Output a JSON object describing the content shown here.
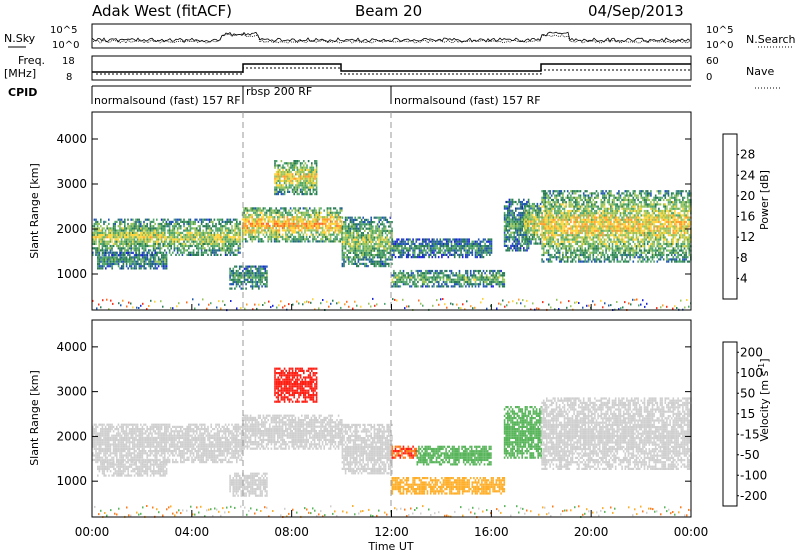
{
  "header": {
    "station": "Adak West (fitACF)",
    "beam": "Beam 20",
    "date": "04/Sep/2013"
  },
  "top_panels": {
    "nsky_label": "N.Sky",
    "nsky_ticks": [
      "10^5",
      "10^0"
    ],
    "nsearch_label": "N.Search",
    "nsearch_ticks": [
      "10^5",
      "10^0"
    ],
    "freq_label": "Freq.",
    "freq_unit": "[MHz]",
    "freq_ticks": [
      "18",
      "8"
    ],
    "nave_label": "Nave",
    "nave_ticks": [
      "60",
      "0"
    ],
    "cpid_label": "CPID",
    "cpid_segments": [
      {
        "start_h": 0,
        "end_h": 6,
        "name": "normalsound (fast) 157 RF"
      },
      {
        "start_h": 6,
        "end_h": 12,
        "name": "rbsp 200 RF"
      },
      {
        "start_h": 12,
        "end_h": 24,
        "name": "normalsound (fast) 157 RF"
      }
    ]
  },
  "chart_data": [
    {
      "type": "heatmap",
      "title": "",
      "xlabel": "Time UT",
      "ylabel": "Slant Range [km]",
      "xlim": [
        0,
        24
      ],
      "ylim": [
        200,
        4600
      ],
      "yticks": [
        1000,
        2000,
        3000,
        4000
      ],
      "colorbar": {
        "label": "Power [dB]",
        "ticks": [
          "4",
          "8",
          "12",
          "16",
          "20",
          "24",
          "28"
        ],
        "colors": [
          "#1a23d8",
          "#2156b0",
          "#2a7c55",
          "#4fa66b",
          "#97c45a",
          "#ffd43a",
          "#ff9c2a",
          "#ff6a1f",
          "#ff2a12"
        ]
      },
      "regions": [
        {
          "t0": 0.0,
          "t1": 5.9,
          "r0": 1450,
          "r1": 2250,
          "intensity": 0.55
        },
        {
          "t0": 0.2,
          "t1": 3.0,
          "r0": 1150,
          "r1": 1500,
          "intensity": 0.35
        },
        {
          "t0": 5.5,
          "t1": 7.0,
          "r0": 700,
          "r1": 1200,
          "intensity": 0.35
        },
        {
          "t0": 6.0,
          "t1": 10.0,
          "r0": 1750,
          "r1": 2500,
          "intensity": 0.75
        },
        {
          "t0": 7.3,
          "t1": 9.0,
          "r0": 2800,
          "r1": 3550,
          "intensity": 0.65
        },
        {
          "t0": 10.0,
          "t1": 12.0,
          "r0": 1200,
          "r1": 2300,
          "intensity": 0.5
        },
        {
          "t0": 12.0,
          "t1": 16.0,
          "r0": 1400,
          "r1": 1800,
          "intensity": 0.3
        },
        {
          "t0": 12.0,
          "t1": 16.5,
          "r0": 750,
          "r1": 1100,
          "intensity": 0.45
        },
        {
          "t0": 16.5,
          "t1": 17.5,
          "r0": 1550,
          "r1": 2700,
          "intensity": 0.35
        },
        {
          "t0": 17.3,
          "t1": 18.0,
          "r0": 1700,
          "r1": 2600,
          "intensity": 0.6
        },
        {
          "t0": 18.0,
          "t1": 24.0,
          "r0": 1300,
          "r1": 2900,
          "intensity": 0.65
        }
      ]
    },
    {
      "type": "heatmap",
      "title": "",
      "xlabel": "Time UT",
      "ylabel": "Slant Range [km]",
      "xlim": [
        0,
        24
      ],
      "ylim": [
        200,
        4600
      ],
      "yticks": [
        1000,
        2000,
        3000,
        4000
      ],
      "xticks": [
        "00:00",
        "04:00",
        "08:00",
        "12:00",
        "16:00",
        "20:00",
        "00:00"
      ],
      "colorbar": {
        "label": "Velocity [m s^-1]",
        "ticks": [
          "200",
          "100",
          "50",
          "15",
          "-15",
          "-50",
          "-100",
          "-200"
        ],
        "colors": [
          "#1e2fc8",
          "#2b7a45",
          "#58b55a",
          "#cfcfcf",
          "#cfcfcf",
          "#ffae2a",
          "#ff7a1a",
          "#ff1e14"
        ]
      },
      "regions": [
        {
          "t0": 0.0,
          "t1": 6.0,
          "r0": 1450,
          "r1": 2300,
          "velocity": 0
        },
        {
          "t0": 0.2,
          "t1": 3.0,
          "r0": 1150,
          "r1": 1500,
          "velocity": 0
        },
        {
          "t0": 5.5,
          "t1": 7.0,
          "r0": 700,
          "r1": 1200,
          "velocity": 0
        },
        {
          "t0": 6.0,
          "t1": 10.0,
          "r0": 1750,
          "r1": 2500,
          "velocity": 0
        },
        {
          "t0": 7.3,
          "t1": 9.0,
          "r0": 2800,
          "r1": 3550,
          "velocity": -200
        },
        {
          "t0": 10.0,
          "t1": 12.0,
          "r0": 1200,
          "r1": 2300,
          "velocity": 0
        },
        {
          "t0": 12.0,
          "t1": 13.0,
          "r0": 1550,
          "r1": 1800,
          "velocity": -150
        },
        {
          "t0": 13.0,
          "t1": 16.0,
          "r0": 1400,
          "r1": 1800,
          "velocity": 50
        },
        {
          "t0": 12.0,
          "t1": 16.5,
          "r0": 750,
          "r1": 1100,
          "velocity": -60
        },
        {
          "t0": 16.5,
          "t1": 18.0,
          "r0": 1550,
          "r1": 2700,
          "velocity": 50
        },
        {
          "t0": 18.0,
          "t1": 24.0,
          "r0": 1300,
          "r1": 2900,
          "velocity": 0
        }
      ]
    }
  ]
}
